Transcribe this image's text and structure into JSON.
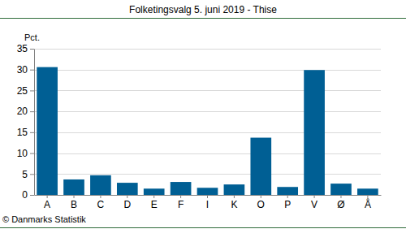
{
  "chart_data": {
    "type": "bar",
    "title": "Folketingsvalg 5. juni 2019 - Thise",
    "y_label": "Pct.",
    "annotations": [
      "© Danmarks Statistik"
    ],
    "categories": [
      "A",
      "B",
      "C",
      "D",
      "E",
      "F",
      "I",
      "K",
      "O",
      "P",
      "V",
      "Ø",
      "Å"
    ],
    "values": [
      30.6,
      3.7,
      4.7,
      2.9,
      1.5,
      3.1,
      1.7,
      2.5,
      13.7,
      1.9,
      29.9,
      2.7,
      1.5
    ],
    "color": "#005f94",
    "ylim": [
      0,
      35
    ],
    "yticks": [
      0,
      5,
      10,
      15,
      20,
      25,
      30,
      35
    ],
    "grid": true
  }
}
